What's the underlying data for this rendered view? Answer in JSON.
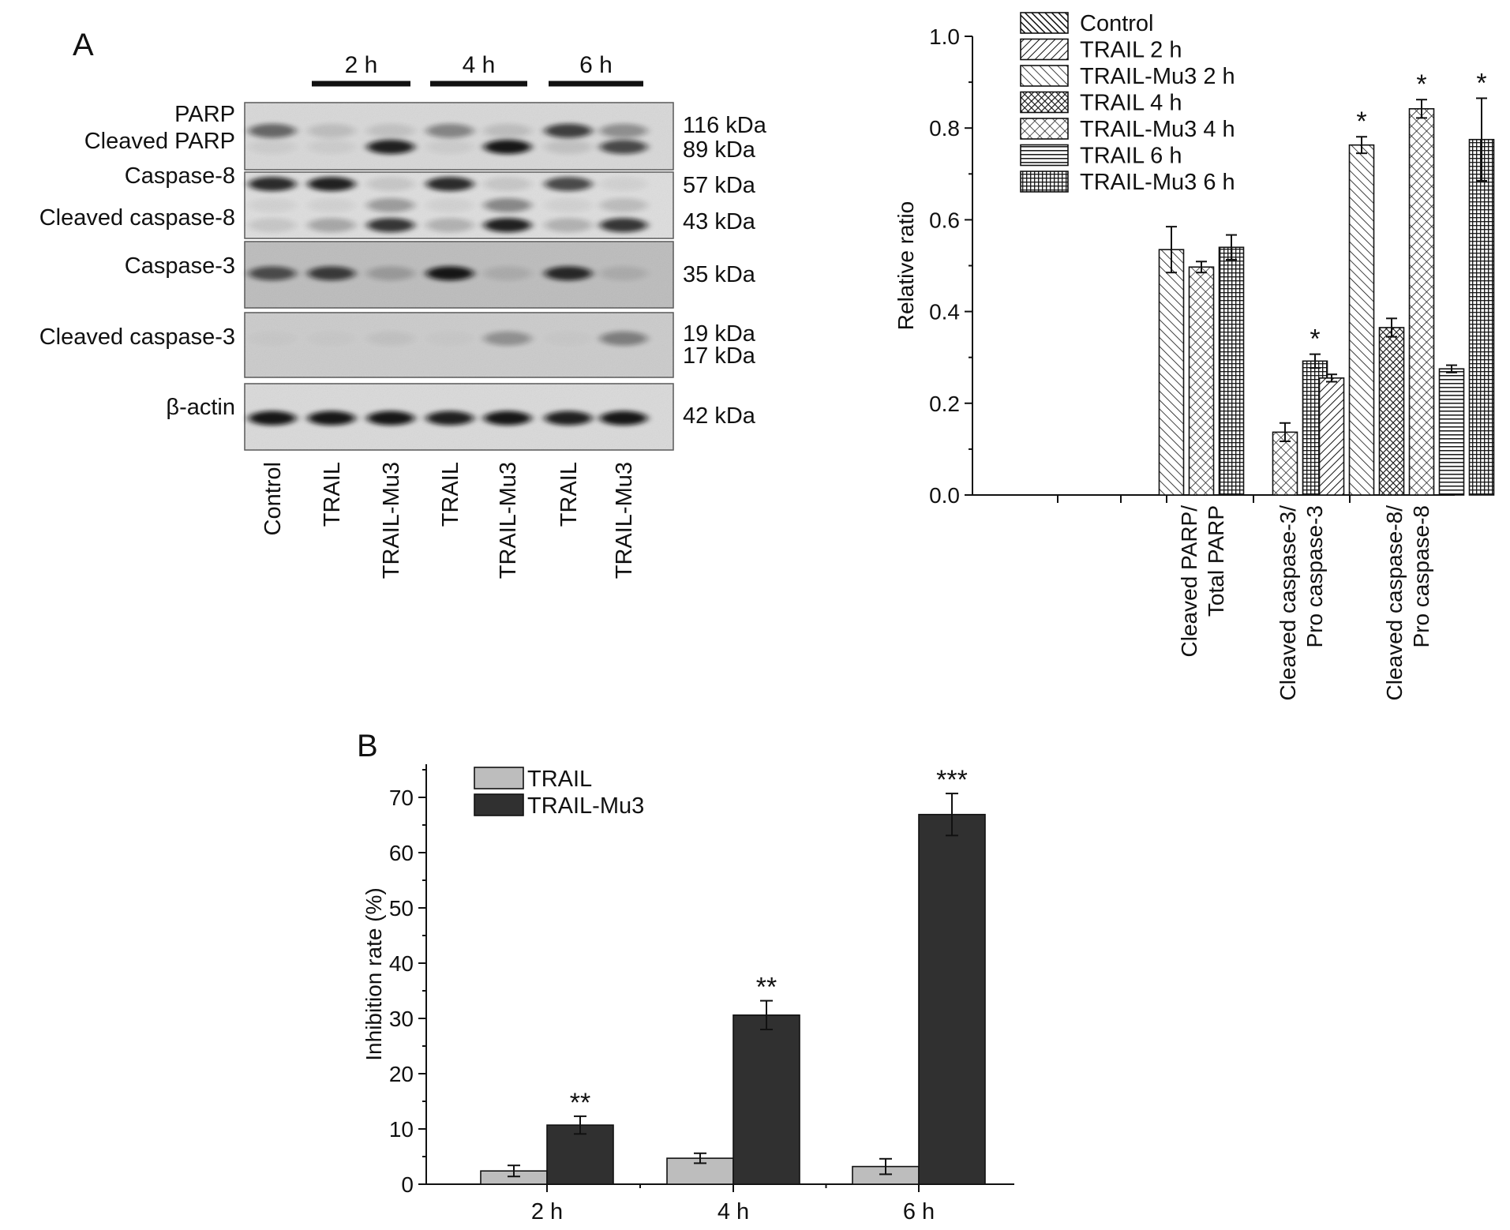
{
  "panel_a": {
    "label": "A",
    "blot": {
      "time_groups": [
        {
          "label": "2 h",
          "lanes": [
            1,
            2
          ]
        },
        {
          "label": "4 h",
          "lanes": [
            3,
            4
          ]
        },
        {
          "label": "6 h",
          "lanes": [
            5,
            6
          ]
        }
      ],
      "lane_labels": [
        "Control",
        "TRAIL",
        "TRAIL-Mu3",
        "TRAIL",
        "TRAIL-Mu3",
        "TRAIL",
        "TRAIL-Mu3"
      ],
      "rows": [
        {
          "labels": [
            "PARP",
            "Cleaved PARP"
          ],
          "markers": [
            "116 kDa",
            "89 kDa"
          ],
          "bands": [
            {
              "f": 0.42,
              "lanes": [
                0.55,
                0.12,
                0.1,
                0.4,
                0.12,
                0.75,
                0.35
              ]
            },
            {
              "f": 0.66,
              "lanes": [
                0.05,
                0.05,
                0.9,
                0.05,
                0.95,
                0.1,
                0.7
              ]
            }
          ]
        },
        {
          "labels": [
            "Caspase-8",
            "Cleaved caspase-8"
          ],
          "markers": [
            "57 kDa",
            "43 kDa"
          ],
          "bands": [
            {
              "f": 0.18,
              "lanes": [
                0.85,
                0.9,
                0.1,
                0.85,
                0.1,
                0.7,
                0.05
              ]
            },
            {
              "f": 0.5,
              "lanes": [
                0.05,
                0.05,
                0.3,
                0.05,
                0.4,
                0.05,
                0.15
              ]
            },
            {
              "f": 0.8,
              "lanes": [
                0.1,
                0.25,
                0.8,
                0.2,
                0.9,
                0.2,
                0.8
              ]
            }
          ]
        },
        {
          "labels": [
            "Caspase-3"
          ],
          "markers": [
            "35 kDa"
          ],
          "bands": [
            {
              "f": 0.48,
              "lanes": [
                0.65,
                0.75,
                0.2,
                0.95,
                0.1,
                0.85,
                0.1
              ]
            }
          ]
        },
        {
          "labels": [
            "Cleaved caspase-3"
          ],
          "markers": [
            "19 kDa",
            "17 kDa"
          ],
          "bands": [
            {
              "f": 0.4,
              "lanes": [
                0.02,
                0.02,
                0.05,
                0.02,
                0.3,
                0.02,
                0.4
              ]
            }
          ]
        },
        {
          "labels": [
            "β-actin"
          ],
          "markers": [
            "42 kDa"
          ],
          "bands": [
            {
              "f": 0.52,
              "lanes": [
                0.95,
                0.95,
                0.95,
                0.9,
                0.95,
                0.9,
                0.95
              ]
            }
          ]
        }
      ]
    }
  },
  "panel_b": {
    "label": "B"
  },
  "chart_data": [
    {
      "type": "bar",
      "ylabel": "Relative ratio",
      "ylim": [
        0,
        1.0
      ],
      "yticks": [
        "0.0",
        "0.2",
        "0.4",
        "0.6",
        "0.8",
        "1.0"
      ],
      "categories": [
        [
          "Cleaved PARP/",
          "Total PARP"
        ],
        [
          "Cleaved caspase-3/",
          "Pro caspase-3"
        ],
        [
          "Cleaved caspase-8/",
          "Pro caspase-8"
        ]
      ],
      "legend_position": "top-right",
      "series": [
        {
          "name": "Control",
          "pattern": "diag-dense"
        },
        {
          "name": "TRAIL 2 h",
          "pattern": "backdiag"
        },
        {
          "name": "TRAIL-Mu3 2 h",
          "pattern": "diag"
        },
        {
          "name": "TRAIL 4 h",
          "pattern": "crosshatch-dense"
        },
        {
          "name": "TRAIL-Mu3 4 h",
          "pattern": "crosshatch"
        },
        {
          "name": "TRAIL 6 h",
          "pattern": "horizontal"
        },
        {
          "name": "TRAIL-Mu3 6 h",
          "pattern": "grid"
        }
      ],
      "bars": [
        {
          "category": 0,
          "series": 2,
          "value": 0.535,
          "error": 0.05
        },
        {
          "category": 0,
          "series": 4,
          "value": 0.497,
          "error": 0.012
        },
        {
          "category": 0,
          "series": 6,
          "value": 0.54,
          "error": 0.027
        },
        {
          "category": 1,
          "series": 4,
          "value": 0.137,
          "error": 0.02
        },
        {
          "category": 1,
          "series": 6,
          "value": 0.292,
          "error": 0.015,
          "sig": "*"
        },
        {
          "category": 2,
          "series": 1,
          "value": 0.255,
          "error": 0.008
        },
        {
          "category": 2,
          "series": 2,
          "value": 0.763,
          "error": 0.018,
          "sig": "*"
        },
        {
          "category": 2,
          "series": 3,
          "value": 0.365,
          "error": 0.02
        },
        {
          "category": 2,
          "series": 4,
          "value": 0.842,
          "error": 0.02,
          "sig": "*"
        },
        {
          "category": 2,
          "series": 5,
          "value": 0.275,
          "error": 0.008
        },
        {
          "category": 2,
          "series": 6,
          "value": 0.775,
          "error": 0.09,
          "sig": "*"
        }
      ]
    },
    {
      "type": "bar",
      "ylabel": "Inhibition rate (%)",
      "ylim": [
        0,
        76
      ],
      "yticks": [
        "0",
        "10",
        "20",
        "30",
        "40",
        "50",
        "60",
        "70"
      ],
      "categories": [
        "2 h",
        "4 h",
        "6 h"
      ],
      "legend_position": "top-left",
      "series": [
        {
          "name": "TRAIL",
          "color": "#bdbdbd",
          "values": [
            2.4,
            4.7,
            3.2
          ],
          "errors": [
            1.0,
            0.9,
            1.4
          ],
          "sig": [
            "",
            "",
            ""
          ]
        },
        {
          "name": "TRAIL-Mu3",
          "color": "#303030",
          "values": [
            10.7,
            30.6,
            66.9
          ],
          "errors": [
            1.6,
            2.6,
            3.8
          ],
          "sig": [
            "**",
            "**",
            "***"
          ]
        }
      ]
    }
  ]
}
